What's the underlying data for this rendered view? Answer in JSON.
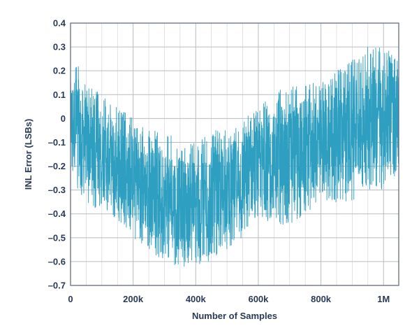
{
  "chart_data": {
    "type": "line",
    "title": "",
    "xlabel": "Number of Samples",
    "ylabel": "INL Error (LSBs)",
    "xlim": [
      0,
      1048576
    ],
    "ylim": [
      -0.7,
      0.4
    ],
    "grid": true,
    "x_ticks": [
      {
        "value": 0,
        "label": "0"
      },
      {
        "value": 200000,
        "label": "200k"
      },
      {
        "value": 400000,
        "label": "400k"
      },
      {
        "value": 600000,
        "label": "600k"
      },
      {
        "value": 800000,
        "label": "800k"
      },
      {
        "value": 1000000,
        "label": "1M"
      }
    ],
    "y_ticks": [
      {
        "value": 0.4,
        "label": "0.4"
      },
      {
        "value": 0.3,
        "label": "0.3"
      },
      {
        "value": 0.2,
        "label": "0.2"
      },
      {
        "value": 0.1,
        "label": "0.1"
      },
      {
        "value": 0,
        "label": "0"
      },
      {
        "value": -0.1,
        "label": "–0.1"
      },
      {
        "value": -0.2,
        "label": "–0.2"
      },
      {
        "value": -0.3,
        "label": "–0.3"
      },
      {
        "value": -0.4,
        "label": "–0.4"
      },
      {
        "value": -0.5,
        "label": "–0.5"
      },
      {
        "value": -0.6,
        "label": "–0.6"
      },
      {
        "value": -0.7,
        "label": "–0.7"
      }
    ],
    "series": [
      {
        "color": "#2e9fc0",
        "envelope": {
          "x": [
            0,
            20000,
            50000,
            100000,
            150000,
            200000,
            250000,
            300000,
            350000,
            400000,
            450000,
            500000,
            550000,
            600000,
            650000,
            700000,
            750000,
            800000,
            850000,
            900000,
            950000,
            1000000,
            1048576
          ],
          "upper": [
            0.2,
            0.25,
            0.15,
            0.1,
            0.05,
            0.0,
            -0.05,
            -0.05,
            -0.1,
            -0.1,
            -0.05,
            -0.05,
            0.0,
            0.05,
            0.1,
            0.15,
            0.15,
            0.15,
            0.2,
            0.25,
            0.3,
            0.3,
            0.25
          ],
          "lower": [
            -0.2,
            -0.3,
            -0.35,
            -0.4,
            -0.45,
            -0.5,
            -0.55,
            -0.6,
            -0.62,
            -0.62,
            -0.6,
            -0.55,
            -0.5,
            -0.45,
            -0.45,
            -0.45,
            -0.4,
            -0.35,
            -0.35,
            -0.35,
            -0.3,
            -0.3,
            -0.25
          ]
        }
      }
    ],
    "colors": {
      "series": "#2e9fc0",
      "grid": "#b7bcc4",
      "axis_text": "#2b3a55",
      "frame": "#5a6272"
    }
  }
}
